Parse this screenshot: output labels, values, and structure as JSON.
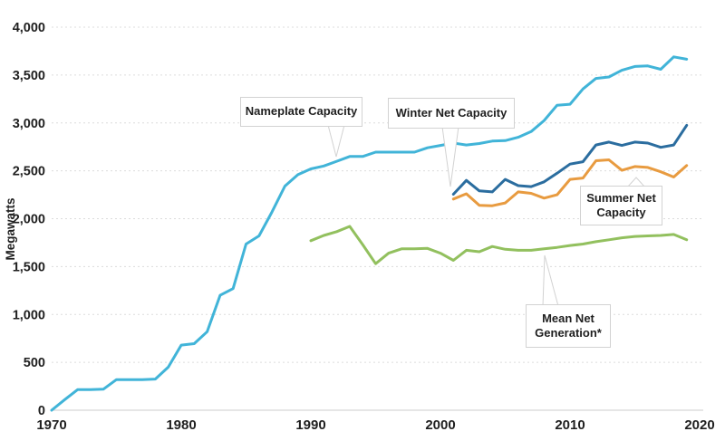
{
  "chart_data": {
    "type": "line",
    "title": "",
    "xlabel": "",
    "ylabel": "Megawatts",
    "xlim": [
      1970,
      2020
    ],
    "ylim": [
      0,
      4000
    ],
    "grid": "horizontal-dotted",
    "legend_position": "inline-callouts",
    "y_ticks": [
      {
        "value": 0,
        "label": "0"
      },
      {
        "value": 500,
        "label": "500"
      },
      {
        "value": 1000,
        "label": "1,000"
      },
      {
        "value": 1500,
        "label": "1,500"
      },
      {
        "value": 2000,
        "label": "2,000"
      },
      {
        "value": 2500,
        "label": "2,500"
      },
      {
        "value": 3000,
        "label": "3,000"
      },
      {
        "value": 3500,
        "label": "3,500"
      },
      {
        "value": 4000,
        "label": "4,000"
      }
    ],
    "x_ticks": [
      {
        "value": 1970,
        "label": "1970"
      },
      {
        "value": 1980,
        "label": "1980"
      },
      {
        "value": 1990,
        "label": "1990"
      },
      {
        "value": 2000,
        "label": "2000"
      },
      {
        "value": 2010,
        "label": "2010"
      },
      {
        "value": 2020,
        "label": "2020"
      }
    ],
    "series": [
      {
        "name": "Nameplate Capacity",
        "color": "#41b4d8",
        "start_year": 1970,
        "values": [
          0,
          110,
          215,
          215,
          220,
          320,
          320,
          320,
          325,
          450,
          680,
          695,
          820,
          1200,
          1270,
          1735,
          1820,
          2070,
          2340,
          2460,
          2520,
          2550,
          2600,
          2650,
          2650,
          2695,
          2695,
          2695,
          2695,
          2740,
          2765,
          2790,
          2770,
          2785,
          2810,
          2815,
          2850,
          2910,
          3025,
          3185,
          3195,
          3355,
          3465,
          3480,
          3550,
          3590,
          3595,
          3560,
          3690,
          3665
        ]
      },
      {
        "name": "Winter Net Capacity",
        "color": "#2b6d9f",
        "start_year": 2001,
        "values": [
          2255,
          2400,
          2290,
          2280,
          2410,
          2345,
          2335,
          2385,
          2475,
          2570,
          2595,
          2770,
          2800,
          2765,
          2800,
          2790,
          2745,
          2770,
          2975
        ]
      },
      {
        "name": "Summer Net Capacity",
        "color": "#e89b40",
        "start_year": 2001,
        "values": [
          2205,
          2260,
          2140,
          2135,
          2165,
          2280,
          2265,
          2215,
          2250,
          2410,
          2425,
          2605,
          2615,
          2505,
          2545,
          2535,
          2490,
          2435,
          2555
        ]
      },
      {
        "name": "Mean Net Generation*",
        "color": "#92c05e",
        "start_year": 1990,
        "values": [
          1770,
          1825,
          1865,
          1920,
          1730,
          1530,
          1640,
          1685,
          1685,
          1690,
          1640,
          1565,
          1670,
          1655,
          1710,
          1680,
          1670,
          1670,
          1685,
          1700,
          1720,
          1735,
          1760,
          1780,
          1800,
          1815,
          1820,
          1825,
          1835,
          1780
        ]
      }
    ],
    "annotations": [
      {
        "id": "nameplate",
        "lines": [
          "Nameplate Capacity",
          ""
        ]
      },
      {
        "id": "winter",
        "lines": [
          "Winter Net Capacity",
          ""
        ]
      },
      {
        "id": "summer",
        "lines": [
          "Summer Net",
          "Capacity"
        ]
      },
      {
        "id": "mean",
        "lines": [
          "Mean Net",
          "Generation*"
        ]
      }
    ]
  }
}
